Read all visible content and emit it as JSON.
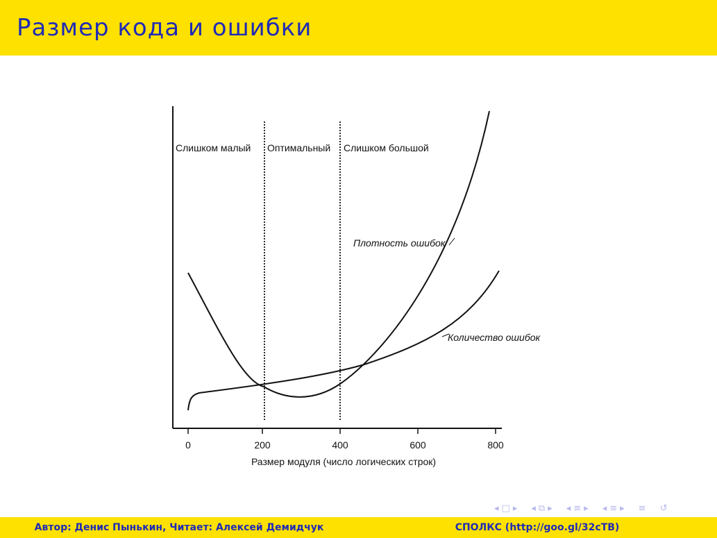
{
  "slide": {
    "title": "Размер кода и ошибки"
  },
  "figure": {
    "zone_labels": {
      "left": "Слишком малый",
      "middle": "Оптимальный",
      "right": "Слишком большой"
    },
    "curve_labels": {
      "density": "Плотность ошибок",
      "count": "Количество ошибок"
    },
    "x_ticks": [
      "0",
      "200",
      "400",
      "600",
      "800"
    ],
    "x_label": "Размер модуля (число логических строк)"
  },
  "nav": {
    "icons": [
      "nav-prev-frame",
      "nav-frame",
      "nav-next-frame",
      "nav-prev-subsection",
      "nav-subsection",
      "nav-next-subsection",
      "nav-prev-section",
      "nav-section",
      "nav-next-section",
      "nav-document",
      "nav-search"
    ]
  },
  "footer": {
    "left": "Автор: Денис Пынькин, Читает: Алексей Демидчук",
    "right": "СПОЛКС (http://goo.gl/32cTB)"
  }
}
